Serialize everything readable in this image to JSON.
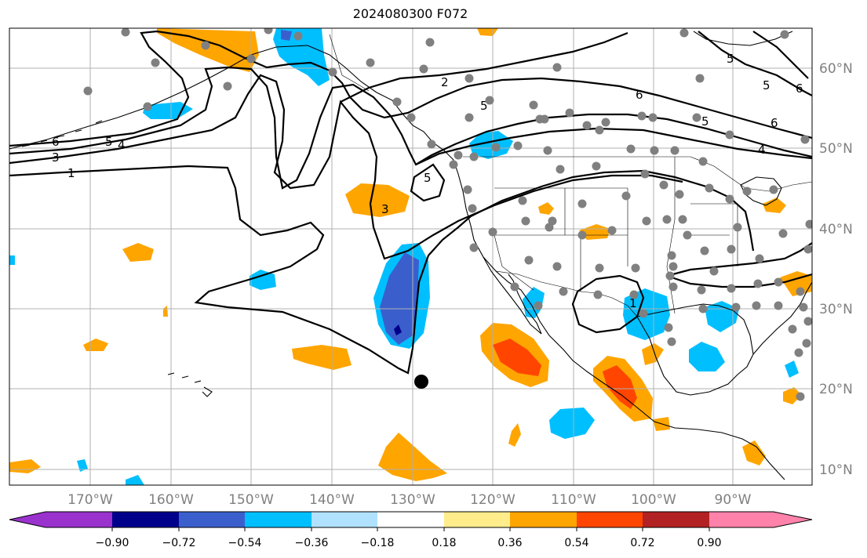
{
  "title": "2024080300 F072",
  "lon_labels": [
    "170°W",
    "160°W",
    "150°W",
    "140°W",
    "130°W",
    "120°W",
    "110°W",
    "100°W",
    "90°W"
  ],
  "lat_labels": [
    "60°N",
    "50°N",
    "40°N",
    "30°N",
    "20°N",
    "10°N"
  ],
  "colorbar": {
    "tick_labels": [
      "−0.90",
      "−0.72",
      "−0.54",
      "−0.36",
      "−0.18",
      "0.18",
      "0.36",
      "0.54",
      "0.72",
      "0.90"
    ],
    "colors": [
      "#9a32cd",
      "#00008b",
      "#3a5fcd",
      "#00bfff",
      "#b0e2ff",
      "#ffffff",
      "#ffec8b",
      "#ffa500",
      "#ff4500",
      "#b22222",
      "#ff82ab"
    ]
  },
  "contour_labels": [
    "1",
    "2",
    "3",
    "4",
    "5",
    "6"
  ],
  "colors": {
    "grid": "#b0b0b0",
    "coast": "#000000",
    "stations": "#808080",
    "marker": "#000000"
  }
}
